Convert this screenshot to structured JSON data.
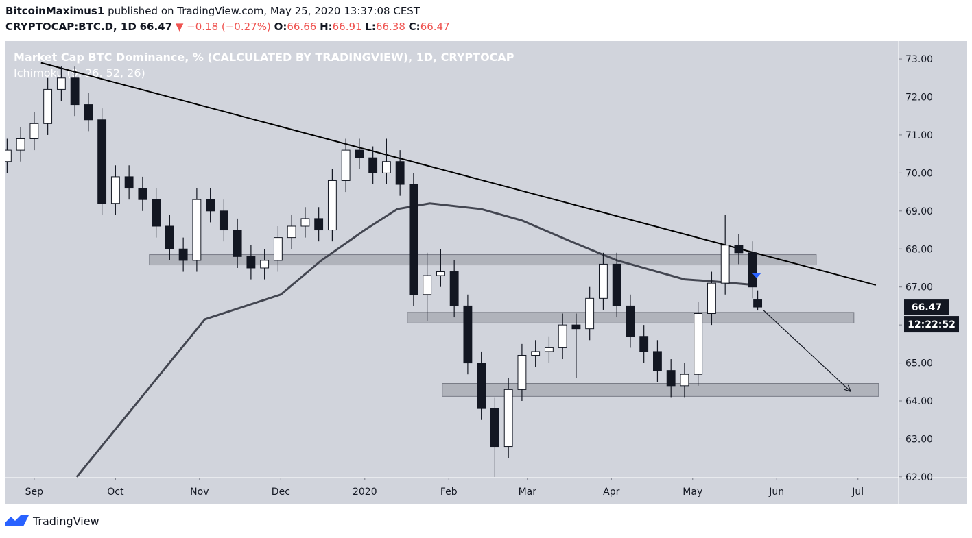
{
  "header": {
    "author": "BitcoinMaximus1",
    "published": "published on TradingView.com, May 25, 2020 13:37:08 CEST",
    "symbol": "CRYPTOCAP:BTC.D, 1D",
    "change": "▼ −0.18 (−0.27%)",
    "ohlc": [
      {
        "label": "O:",
        "value": 66.66
      },
      {
        "label": "H:",
        "value": 66.91
      },
      {
        "label": "L:",
        "value": 66.38
      },
      {
        "label": "C:",
        "value": 66.47
      }
    ]
  },
  "chart_data": {
    "type": "candlestick",
    "title": "Market Cap BTC Dominance, % (CALCULATED BY TRADINGVIEW), 1D, CRYPTOCAP",
    "subtitle": "Ichimoku (9, 26, 52, 26)",
    "x": [
      -10,
      -5,
      0,
      5,
      10,
      15,
      20,
      25,
      30,
      35,
      40,
      45,
      50,
      55,
      60,
      65,
      70,
      75,
      80,
      85,
      90,
      95,
      100,
      105,
      110,
      115,
      120,
      125,
      130,
      135,
      140,
      145,
      150,
      155,
      160,
      165,
      170,
      175,
      180,
      185,
      190,
      195,
      200,
      205,
      210,
      215,
      220,
      225,
      230,
      235,
      240,
      245,
      250,
      255,
      260,
      265,
      267
    ],
    "open": [
      70.3,
      70.6,
      70.9,
      71.3,
      72.2,
      72.5,
      71.8,
      71.4,
      69.2,
      69.9,
      69.6,
      69.3,
      68.6,
      68.0,
      67.7,
      69.3,
      69.0,
      68.5,
      67.8,
      67.5,
      67.7,
      68.3,
      68.6,
      68.8,
      68.5,
      69.8,
      70.6,
      70.4,
      70.0,
      70.3,
      69.7,
      66.8,
      67.3,
      67.4,
      66.5,
      65.0,
      63.8,
      62.8,
      64.3,
      65.2,
      65.3,
      65.4,
      66.0,
      65.9,
      66.7,
      67.6,
      66.5,
      65.7,
      65.3,
      64.8,
      64.4,
      64.7,
      66.3,
      67.1,
      68.1,
      67.9,
      66.66
    ],
    "high": [
      70.9,
      71.2,
      71.6,
      72.5,
      72.8,
      72.8,
      72.1,
      71.7,
      70.2,
      70.2,
      69.9,
      69.6,
      68.9,
      68.3,
      69.6,
      69.6,
      69.3,
      68.8,
      68.1,
      68.0,
      68.6,
      68.9,
      69.1,
      69.1,
      70.1,
      70.9,
      70.9,
      70.7,
      70.9,
      70.6,
      70.0,
      67.9,
      68.0,
      67.7,
      66.8,
      65.3,
      64.1,
      64.6,
      65.5,
      65.6,
      65.7,
      66.3,
      66.3,
      67.0,
      67.9,
      67.9,
      66.8,
      66.0,
      65.6,
      65.1,
      65.0,
      66.6,
      67.4,
      68.9,
      68.4,
      68.2,
      66.91
    ],
    "low": [
      70.0,
      70.3,
      70.6,
      71.0,
      71.9,
      71.5,
      71.1,
      68.9,
      68.9,
      69.3,
      69.0,
      68.3,
      67.7,
      67.4,
      67.4,
      68.7,
      68.2,
      67.5,
      67.2,
      67.2,
      67.4,
      68.0,
      68.3,
      68.2,
      68.2,
      69.5,
      70.1,
      69.7,
      69.7,
      69.4,
      66.5,
      66.1,
      67.0,
      66.2,
      64.7,
      63.5,
      62.0,
      62.5,
      64.0,
      64.9,
      65.0,
      65.1,
      64.6,
      65.6,
      66.4,
      66.2,
      65.4,
      65.0,
      64.5,
      64.1,
      64.1,
      64.4,
      66.0,
      66.8,
      67.6,
      66.7,
      66.38
    ],
    "close": [
      70.6,
      70.9,
      71.3,
      72.2,
      72.5,
      71.8,
      71.4,
      69.2,
      69.9,
      69.6,
      69.3,
      68.6,
      68.0,
      67.7,
      69.3,
      69.0,
      68.5,
      67.8,
      67.5,
      67.7,
      68.3,
      68.6,
      68.8,
      68.5,
      69.8,
      70.6,
      70.4,
      70.0,
      70.3,
      69.7,
      66.8,
      67.3,
      67.4,
      66.5,
      65.0,
      63.8,
      62.8,
      64.3,
      65.2,
      65.3,
      65.4,
      66.0,
      65.9,
      66.7,
      67.6,
      66.5,
      65.7,
      65.3,
      64.8,
      64.4,
      64.7,
      66.3,
      67.1,
      68.1,
      67.9,
      67.0,
      66.47
    ],
    "up_color": "#ffffff",
    "down_color": "#131722",
    "ma": {
      "color": "#434651",
      "x": [
        15.7,
        63,
        91,
        106,
        122,
        134,
        146,
        165,
        180,
        198,
        215,
        230,
        240,
        250,
        266
      ],
      "values": [
        62.0,
        66.15,
        66.8,
        67.7,
        68.5,
        69.05,
        69.2,
        69.05,
        68.75,
        68.2,
        67.7,
        67.4,
        67.2,
        67.15,
        67.05
      ]
    },
    "trendline": {
      "color": "#000000",
      "x": [
        2.5,
        310.6
      ],
      "values": [
        72.9,
        67.05
      ]
    },
    "arrow": {
      "color": "#131722",
      "x": [
        268.9,
        301.3
      ],
      "values": [
        66.4,
        64.25
      ]
    },
    "zones": [
      {
        "x": [
          42.5,
          288.6
        ],
        "values": [
          67.58,
          67.85
        ]
      },
      {
        "x": [
          137.7,
          302.5
        ],
        "values": [
          66.05,
          66.33
        ]
      },
      {
        "x": [
          150.6,
          311.6
        ],
        "values": [
          64.12,
          64.46
        ]
      }
    ],
    "zone_color": "#9598a1",
    "marker": {
      "x": 266.6,
      "value": 67.3,
      "color": "#2962ff"
    },
    "countdown": "12:22:52",
    "xlim": [
      -10.6,
      319
    ],
    "xticks": [
      {
        "value": 0,
        "label": "Sep"
      },
      {
        "value": 30,
        "label": "Oct"
      },
      {
        "value": 61,
        "label": "Nov"
      },
      {
        "value": 91,
        "label": "Dec"
      },
      {
        "value": 122,
        "label": "2020"
      },
      {
        "value": 153,
        "label": "Feb"
      },
      {
        "value": 182,
        "label": "Mar"
      },
      {
        "value": 213,
        "label": "Apr"
      },
      {
        "value": 243,
        "label": "May"
      },
      {
        "value": 274,
        "label": "Jun"
      },
      {
        "value": 304,
        "label": "Jul"
      }
    ],
    "ylim": [
      61.98,
      73.47
    ],
    "yticks": [
      {
        "value": 62,
        "label": "62.00"
      },
      {
        "value": 63,
        "label": "63.00"
      },
      {
        "value": 64,
        "label": "64.00"
      },
      {
        "value": 65,
        "label": "65.00"
      },
      {
        "value": 66,
        "label": "66.00"
      },
      {
        "value": 67,
        "label": "67.00"
      },
      {
        "value": 68,
        "label": "68.00"
      },
      {
        "value": 69,
        "label": "69.00"
      },
      {
        "value": 70,
        "label": "70.00"
      },
      {
        "value": 71,
        "label": "71.00"
      },
      {
        "value": 72,
        "label": "72.00"
      },
      {
        "value": 73,
        "label": "73.00"
      }
    ]
  },
  "footer": {
    "brand": "TradingView"
  }
}
